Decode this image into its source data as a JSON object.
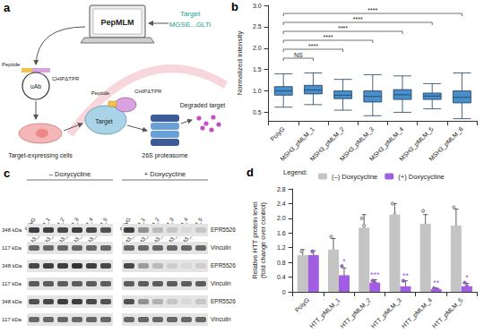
{
  "panel_labels": [
    "a",
    "b",
    "c",
    "d"
  ],
  "schematic": {
    "tool": "PepMLM",
    "target_label": "Target",
    "target_sequence": "MGSE...GLTi",
    "plasmid_peptide": "Peptide",
    "plasmid_fusion": "CHIPΔTPR",
    "plasmid": "uAb",
    "cells": "Target-expressing cells",
    "complex_peptide": "Peptide",
    "complex_fusion": "CHIPΔTPR",
    "complex_target": "Target",
    "degraded": "Degraded target",
    "proteasome": "26S proteasome"
  },
  "blot": {
    "conditions": [
      "– Doxycycline",
      "+ Doxycycline"
    ],
    "lanes": [
      "PolyG",
      "Q43_pMLM_1",
      "Q43_pMLM_2",
      "Q43_pMLM_3",
      "Q43_pMLM_4",
      "Q43_pMLM_5"
    ],
    "rows": [
      {
        "size": "348 kDa",
        "protein": "EPR5526",
        "band_intensity": [
          [
            0.8,
            0.8,
            0.75,
            0.8,
            0.75,
            0.7
          ],
          [
            0.8,
            0.4,
            0.2,
            0.15,
            0.05,
            0.15
          ]
        ]
      },
      {
        "size": "117 kDa",
        "protein": "Vinculin",
        "band_intensity": [
          [
            0.6,
            0.6,
            0.6,
            0.6,
            0.6,
            0.6
          ],
          [
            0.6,
            0.6,
            0.6,
            0.6,
            0.6,
            0.6
          ]
        ]
      },
      {
        "size": "348 kDa",
        "protein": "EPR5526",
        "band_intensity": [
          [
            0.75,
            0.8,
            0.8,
            0.85,
            0.8,
            0.75
          ],
          [
            0.75,
            0.35,
            0.2,
            0.1,
            0.05,
            0.1
          ]
        ]
      },
      {
        "size": "117 kDa",
        "protein": "Vinculin",
        "band_intensity": [
          [
            0.65,
            0.65,
            0.65,
            0.65,
            0.65,
            0.65
          ],
          [
            0.65,
            0.65,
            0.65,
            0.65,
            0.65,
            0.65
          ]
        ]
      },
      {
        "size": "348 kDa",
        "protein": "EPR5526",
        "band_intensity": [
          [
            0.7,
            0.75,
            0.8,
            0.8,
            0.75,
            0.7
          ],
          [
            0.7,
            0.4,
            0.25,
            0.15,
            0.05,
            0.15
          ]
        ]
      },
      {
        "size": "117 kDa",
        "protein": "Vinculin",
        "band_intensity": [
          [
            0.6,
            0.6,
            0.6,
            0.6,
            0.6,
            0.6
          ],
          [
            0.6,
            0.6,
            0.6,
            0.6,
            0.6,
            0.6
          ]
        ]
      }
    ]
  },
  "chart_data": [
    {
      "type": "boxplot",
      "ylabel": "Normalized intensity",
      "categories": [
        "PolyG",
        "MSH3_pMLM_1",
        "MSH3_pMLM_2",
        "MSH3_pMLM_3",
        "MSH3_pMLM_4",
        "MSH3_pMLM_5",
        "MSH3_pMLM_6"
      ],
      "values": [
        [
          0.62,
          0.9,
          1.0,
          1.1,
          1.4
        ],
        [
          0.68,
          0.93,
          1.02,
          1.13,
          1.42
        ],
        [
          0.55,
          0.82,
          0.9,
          1.0,
          1.27
        ],
        [
          0.42,
          0.74,
          0.87,
          1.0,
          1.38
        ],
        [
          0.5,
          0.8,
          0.91,
          1.03,
          1.35
        ],
        [
          0.58,
          0.8,
          0.88,
          0.95,
          1.17
        ],
        [
          0.35,
          0.72,
          0.85,
          1.0,
          1.42
        ]
      ],
      "color": "#4a8fc9",
      "ylim": [
        0.3,
        3.0
      ],
      "yticks": [
        0.5,
        {
          "value": 1,
          "label": "1.0"
        },
        1.5,
        {
          "value": 2,
          "label": "2.0"
        },
        2.5,
        {
          "value": 3,
          "label": "3.0"
        }
      ],
      "grid": false,
      "comparisons": [
        {
          "from": "PolyG",
          "to": "MSH3_pMLM_1",
          "label": "NS"
        },
        {
          "from": "PolyG",
          "to": "MSH3_pMLM_2",
          "label": "****"
        },
        {
          "from": "PolyG",
          "to": "MSH3_pMLM_3",
          "label": "****"
        },
        {
          "from": "PolyG",
          "to": "MSH3_pMLM_4",
          "label": "****"
        },
        {
          "from": "PolyG",
          "to": "MSH3_pMLM_5",
          "label": "****"
        },
        {
          "from": "PolyG",
          "to": "MSH3_pMLM_6",
          "label": "****"
        }
      ]
    },
    {
      "type": "bar",
      "ylabel": [
        "Relative HTT protein level",
        "(fold change over control)"
      ],
      "legend_title": "Legend:",
      "legend": "top",
      "grid": false,
      "categories": [
        "PolyG",
        "HTT_pMLM_1",
        "HTT_pMLM_2",
        "HTT_pMLM_3",
        "HTT_pMLM_4",
        "HTT_pMLM_5"
      ],
      "ylim": [
        0,
        2.8
      ],
      "yticks": [
        0,
        0.4,
        0.8,
        1.2,
        1.6,
        {
          "value": 2,
          "label": "2.0"
        },
        2.4,
        2.8
      ],
      "series": [
        {
          "name": "(–) Doxycycline",
          "color": "#c4c4c4",
          "values": [
            1.0,
            1.15,
            1.75,
            2.1,
            1.85,
            1.8
          ],
          "errors": [
            0.15,
            0.3,
            0.35,
            0.3,
            0.25,
            0.45
          ],
          "points": [
            [
              1.1,
              0.9
            ],
            [
              1.5,
              1.0,
              0.95
            ],
            [
              2.0,
              1.8,
              1.4
            ],
            [
              2.4,
              2.1,
              1.9
            ],
            [
              2.2,
              1.8,
              1.6
            ],
            [
              2.3,
              1.6,
              1.5
            ]
          ]
        },
        {
          "name": "(+) Doxycycline",
          "color": "#a25ee0",
          "values": [
            1.0,
            0.45,
            0.25,
            0.15,
            0.07,
            0.15
          ],
          "errors": [
            0.12,
            0.2,
            0.08,
            0.15,
            0.03,
            0.08
          ],
          "points": [
            [
              1.1,
              0.9
            ],
            [
              0.7,
              0.4,
              0.3
            ],
            [
              0.3,
              0.25,
              0.2
            ],
            [
              0.3,
              0.1,
              0.05
            ],
            [
              0.1,
              0.06,
              0.05
            ],
            [
              0.25,
              0.15,
              0.1
            ]
          ],
          "annotations": [
            null,
            "*",
            "***",
            "**",
            "**",
            "*"
          ]
        }
      ]
    }
  ]
}
